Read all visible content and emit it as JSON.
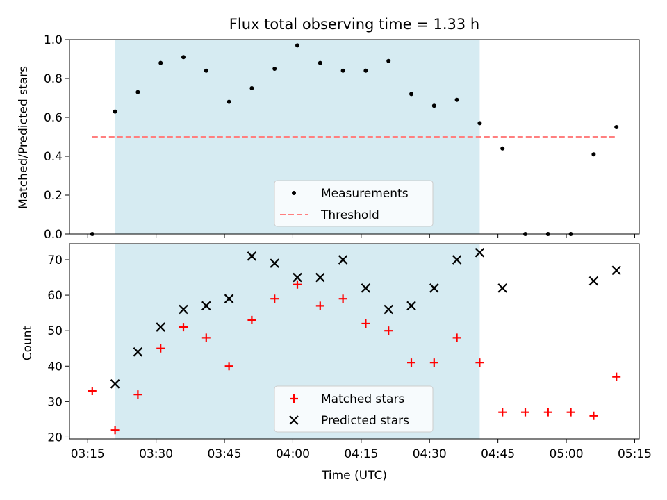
{
  "chart_data": [
    {
      "type": "scatter",
      "title": "Flux total observing time = 1.33 h",
      "xlabel": "",
      "ylabel": "Matched/Predicted stars",
      "ylim": [
        0,
        1.0
      ],
      "yticks": [
        0.0,
        0.2,
        0.4,
        0.6,
        0.8,
        1.0
      ],
      "ytick_labels": [
        "0.0",
        "0.2",
        "0.4",
        "0.6",
        "0.8",
        "1.0"
      ],
      "grid": false,
      "shaded_region": {
        "x_start": "03:21",
        "x_end": "04:41",
        "color": "#add8e6"
      },
      "legend": {
        "placement": "bottom-center",
        "entries": [
          {
            "label": "Measurements",
            "series": "measurements"
          },
          {
            "label": "Threshold",
            "series": "threshold"
          }
        ]
      },
      "series": [
        {
          "name": "Measurements",
          "key": "measurements",
          "marker": "dot",
          "color": "#000000",
          "x": [
            "03:16",
            "03:21",
            "03:26",
            "03:31",
            "03:36",
            "03:41",
            "03:46",
            "03:51",
            "03:56",
            "04:01",
            "04:06",
            "04:11",
            "04:16",
            "04:21",
            "04:26",
            "04:31",
            "04:36",
            "04:41",
            "04:46",
            "04:51",
            "04:56",
            "05:01",
            "05:06",
            "05:11"
          ],
          "y": [
            0.0,
            0.63,
            0.73,
            0.88,
            0.91,
            0.84,
            0.68,
            0.75,
            0.85,
            0.97,
            0.88,
            0.84,
            0.84,
            0.89,
            0.72,
            0.66,
            0.69,
            0.57,
            0.44,
            0.0,
            0.0,
            0.0,
            0.41,
            0.55
          ]
        },
        {
          "name": "Threshold",
          "key": "threshold",
          "style": "dashed",
          "color": "#ff7f7f",
          "x": [
            "03:16",
            "05:11"
          ],
          "y": [
            0.5,
            0.5
          ]
        }
      ]
    },
    {
      "type": "scatter",
      "title": "",
      "xlabel": "Time (UTC)",
      "ylabel": "Count",
      "ylim": [
        19.5,
        74.5
      ],
      "yticks": [
        20,
        30,
        40,
        50,
        60,
        70
      ],
      "ytick_labels": [
        "20",
        "30",
        "40",
        "50",
        "60",
        "70"
      ],
      "xlim": [
        "03:11",
        "05:16"
      ],
      "xticks": [
        "03:15",
        "03:30",
        "03:45",
        "04:00",
        "04:15",
        "04:30",
        "04:45",
        "05:00",
        "05:15"
      ],
      "grid": false,
      "shaded_region": {
        "x_start": "03:21",
        "x_end": "04:41",
        "color": "#add8e6"
      },
      "legend": {
        "placement": "bottom-center",
        "entries": [
          {
            "label": "Matched stars",
            "series": "matched"
          },
          {
            "label": "Predicted stars",
            "series": "predicted"
          }
        ]
      },
      "series": [
        {
          "name": "Matched stars",
          "key": "matched",
          "marker": "plus",
          "color": "#ff0000",
          "x": [
            "03:16",
            "03:21",
            "03:26",
            "03:31",
            "03:36",
            "03:41",
            "03:46",
            "03:51",
            "03:56",
            "04:01",
            "04:06",
            "04:11",
            "04:16",
            "04:21",
            "04:26",
            "04:31",
            "04:36",
            "04:41",
            "04:46",
            "04:51",
            "04:56",
            "05:01",
            "05:06",
            "05:11"
          ],
          "y": [
            33,
            22,
            32,
            45,
            51,
            48,
            40,
            53,
            59,
            63,
            57,
            59,
            52,
            50,
            41,
            41,
            48,
            41,
            27,
            27,
            27,
            27,
            26,
            37
          ]
        },
        {
          "name": "Predicted stars",
          "key": "predicted",
          "marker": "x",
          "color": "#000000",
          "x": [
            "03:21",
            "03:26",
            "03:31",
            "03:36",
            "03:41",
            "03:46",
            "03:51",
            "03:56",
            "04:01",
            "04:06",
            "04:11",
            "04:16",
            "04:21",
            "04:26",
            "04:31",
            "04:36",
            "04:41",
            "04:46",
            "05:06",
            "05:11"
          ],
          "y": [
            35,
            44,
            51,
            56,
            57,
            59,
            71,
            69,
            65,
            65,
            70,
            62,
            56,
            57,
            62,
            70,
            72,
            62,
            64,
            67
          ]
        }
      ]
    }
  ]
}
